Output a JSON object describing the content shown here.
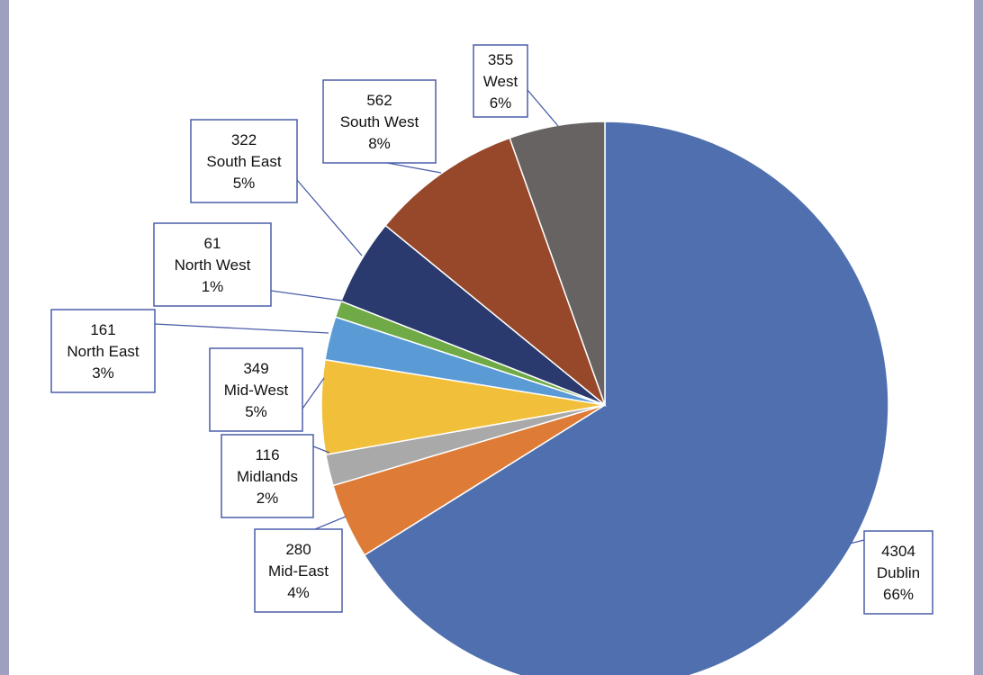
{
  "header": {
    "title_fragment": ""
  },
  "chart_data": {
    "type": "pie",
    "title": "",
    "categories": [
      "Dublin",
      "Mid-East",
      "Midlands",
      "Mid-West",
      "North East",
      "North West",
      "South East",
      "South West",
      "West"
    ],
    "values": [
      4304,
      280,
      116,
      349,
      161,
      61,
      322,
      562,
      355
    ],
    "percent_labels": [
      "66%",
      "4%",
      "2%",
      "5%",
      "3%",
      "1%",
      "5%",
      "8%",
      "6%"
    ],
    "value_labels": [
      "4304",
      "280",
      "116",
      "349",
      "161",
      "61",
      "322",
      "562",
      "355"
    ],
    "colors": [
      "#4f6fae",
      "#de7c37",
      "#a9a9a9",
      "#f2bf3a",
      "#5b9bd5",
      "#6faa46",
      "#2a3a6e",
      "#97482a",
      "#676362"
    ],
    "start_position": "top, clockwise",
    "legend": "none (data callouts)"
  }
}
